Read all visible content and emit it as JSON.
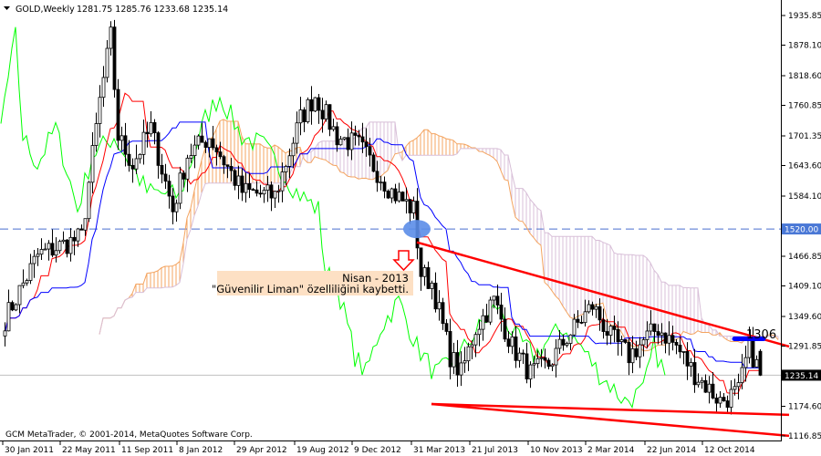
{
  "header": {
    "symbol_timeframe": "GOLD,Weekly",
    "ohlc": "1281.75 1285.76 1233.68 1235.14"
  },
  "footer": {
    "copyright": "GCM MetaTrader, © 2001-2014, MetaQuotes Software Corp."
  },
  "annotation": {
    "line1": "Nisan - 2013",
    "line2": "\"Güvenilir Liman\" özelliliğini kaybetti.",
    "level_label": "1306"
  },
  "colors": {
    "tenkan": "#ff0000",
    "kijun": "#0000ff",
    "chikou": "#00ff00",
    "cloud_up": "#f4a460",
    "cloud_down": "#d8bfd8",
    "trendline": "#ff0000",
    "marker": "#5b8de8",
    "level_line": "#0000ff",
    "price_bg": "#000000",
    "hline_bg": "#4a78d6"
  },
  "chart_data": {
    "type": "candlestick",
    "title": "GOLD,Weekly",
    "indicator": "Ichimoku",
    "ylim": [
      1116.85,
      1935.85
    ],
    "y_ticks": [
      "1935.85",
      "1878.10",
      "1818.60",
      "1760.85",
      "1701.35",
      "1643.60",
      "1584.10",
      "1466.85",
      "1409.10",
      "1349.60",
      "1291.85",
      "1174.60",
      "1116.85"
    ],
    "x_ticks": [
      "30 Jan 2011",
      "22 May 2011",
      "11 Sep 2011",
      "8 Jan 2012",
      "29 Apr 2012",
      "19 Aug 2012",
      "9 Dec 2012",
      "31 Mar 2013",
      "21 Jul 2013",
      "10 Nov 2013",
      "2 Mar 2014",
      "22 Jun 2014",
      "12 Oct 2014"
    ],
    "start_date": "2011-01-30",
    "close_path": [
      [
        "2011-01-30",
        1344
      ],
      [
        "2011-04-03",
        1469
      ],
      [
        "2011-06-26",
        1504
      ],
      [
        "2011-07-31",
        1770
      ],
      [
        "2011-08-21",
        1895
      ],
      [
        "2011-09-04",
        1700
      ],
      [
        "2011-10-02",
        1646
      ],
      [
        "2011-11-06",
        1717
      ],
      [
        "2011-12-18",
        1557
      ],
      [
        "2012-01-15",
        1664
      ],
      [
        "2012-02-26",
        1700
      ],
      [
        "2012-04-29",
        1593
      ],
      [
        "2012-07-01",
        1584
      ],
      [
        "2012-08-19",
        1735
      ],
      [
        "2012-09-16",
        1780
      ],
      [
        "2012-10-28",
        1700
      ],
      [
        "2012-12-09",
        1682
      ],
      [
        "2013-02-10",
        1593
      ],
      [
        "2013-03-24",
        1557
      ],
      [
        "2013-04-07",
        1433
      ],
      [
        "2013-04-28",
        1415
      ],
      [
        "2013-06-02",
        1273
      ],
      [
        "2013-06-23",
        1238
      ],
      [
        "2013-07-21",
        1327
      ],
      [
        "2013-08-25",
        1380
      ],
      [
        "2013-09-29",
        1291
      ],
      [
        "2013-11-03",
        1238
      ],
      [
        "2013-12-08",
        1256
      ],
      [
        "2014-01-12",
        1309
      ],
      [
        "2014-03-02",
        1371
      ],
      [
        "2014-04-06",
        1309
      ],
      [
        "2014-05-11",
        1273
      ],
      [
        "2014-06-15",
        1309
      ],
      [
        "2014-07-06",
        1327
      ],
      [
        "2014-08-10",
        1291
      ],
      [
        "2014-09-14",
        1238
      ],
      [
        "2014-11-02",
        1185
      ],
      [
        "2014-12-07",
        1202
      ],
      [
        "2014-12-28",
        1291
      ],
      [
        "2015-01-18",
        1235.14
      ]
    ],
    "last_bar": {
      "open": 1281.75,
      "high": 1285.76,
      "low": 1233.68,
      "close": 1235.14
    },
    "horizontal_lines": [
      {
        "price": 1520.0,
        "label": "1520.00",
        "style": "dashed"
      },
      {
        "price": 1235.14,
        "label": "1235.14",
        "style": "solid"
      }
    ],
    "trendlines": [
      {
        "from": [
          "2013-03-31",
          1494
        ],
        "to": [
          "2015-03-15",
          1291
        ]
      },
      {
        "from": [
          "2013-04-28",
          1179
        ],
        "to": [
          "2015-03-15",
          1158
        ]
      },
      {
        "from": [
          "2013-04-28",
          1179
        ],
        "to": [
          "2015-03-15",
          1117
        ]
      }
    ],
    "level": {
      "price": 1306,
      "from": "2014-11-30",
      "to": "2015-01-25"
    },
    "marker": {
      "date": "2013-03-31",
      "price": 1520
    }
  }
}
